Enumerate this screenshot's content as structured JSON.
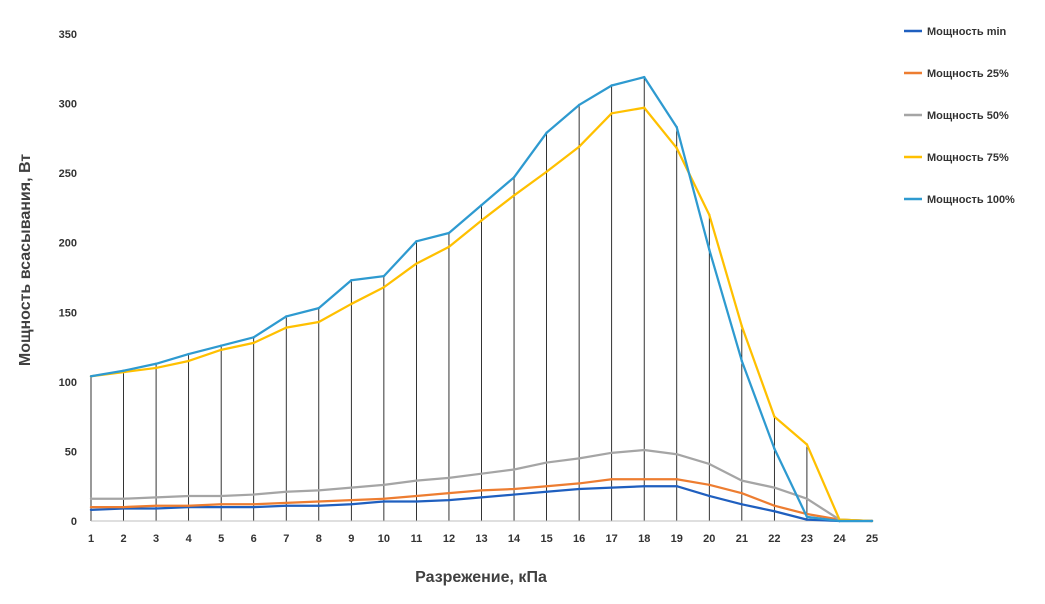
{
  "chart_data": {
    "type": "line",
    "title": "",
    "xlabel": "Разрежение, кПа",
    "ylabel": "Мощность всасывания, Вт",
    "x": [
      1,
      2,
      3,
      4,
      5,
      6,
      7,
      8,
      9,
      10,
      11,
      12,
      13,
      14,
      15,
      16,
      17,
      18,
      19,
      20,
      21,
      22,
      23,
      24,
      25
    ],
    "ylim": [
      0,
      350
    ],
    "yticks": [
      0,
      50,
      100,
      150,
      200,
      250,
      300,
      350
    ],
    "grid": false,
    "drop_lines": true,
    "legend_position": "right",
    "series": [
      {
        "name": "Мощность min",
        "color": "#1f5fbf",
        "values": [
          8,
          9,
          9,
          10,
          10,
          10,
          11,
          11,
          12,
          14,
          14,
          15,
          17,
          19,
          21,
          23,
          24,
          25,
          25,
          18,
          12,
          7,
          1,
          0,
          0
        ]
      },
      {
        "name": "Мощность 25%",
        "color": "#ed7d31",
        "values": [
          10,
          10,
          11,
          11,
          12,
          12,
          13,
          14,
          15,
          16,
          18,
          20,
          22,
          23,
          25,
          27,
          30,
          30,
          30,
          26,
          20,
          11,
          5,
          1,
          0
        ]
      },
      {
        "name": "Мощность 50%",
        "color": "#a5a5a5",
        "values": [
          16,
          16,
          17,
          18,
          18,
          19,
          21,
          22,
          24,
          26,
          29,
          31,
          34,
          37,
          42,
          45,
          49,
          51,
          48,
          41,
          29,
          24,
          16,
          1,
          0
        ]
      },
      {
        "name": "Мощность 75%",
        "color": "#ffc000",
        "values": [
          104,
          107,
          110,
          115,
          123,
          128,
          139,
          143,
          156,
          168,
          185,
          197,
          216,
          234,
          251,
          269,
          293,
          297,
          268,
          220,
          140,
          75,
          55,
          1,
          0
        ]
      },
      {
        "name": "Мощность 100%",
        "color": "#2e9ad0",
        "values": [
          104,
          108,
          113,
          120,
          126,
          132,
          147,
          153,
          173,
          176,
          201,
          207,
          227,
          247,
          279,
          299,
          313,
          319,
          283,
          195,
          115,
          52,
          3,
          0,
          0
        ]
      }
    ]
  }
}
